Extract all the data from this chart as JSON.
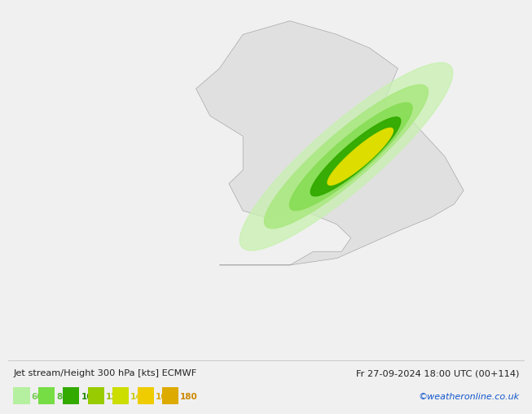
{
  "title_left": "Jet stream/Height 300 hPa [kts] ECMWF",
  "title_right": "Fr 27-09-2024 18:00 UTC (00+114)",
  "credit": "©weatheronline.co.uk",
  "legend_values": [
    60,
    80,
    100,
    120,
    140,
    160,
    180
  ],
  "legend_colors": [
    "#b5f0a0",
    "#77dd44",
    "#33aa00",
    "#99cc00",
    "#ccdd00",
    "#eecc00",
    "#ddaa00"
  ],
  "bg_color": "#f0f0f0",
  "land_color": "#e0e0e0",
  "ocean_color": "#e8eef0",
  "green_light": "#c8f0b0",
  "green_mid": "#88dd55",
  "green_dark": "#33aa00",
  "yellow": "#dddd00",
  "bottom_bar_color": "#f8f8f8",
  "border_color": "#999999",
  "contour_color": "#000000",
  "text_color": "#222222",
  "credit_color": "#1155cc",
  "legend_text_colors": [
    "#77cc55",
    "#55bb33",
    "#228800",
    "#99bb00",
    "#cccc00",
    "#ddaa00",
    "#cc8800"
  ]
}
